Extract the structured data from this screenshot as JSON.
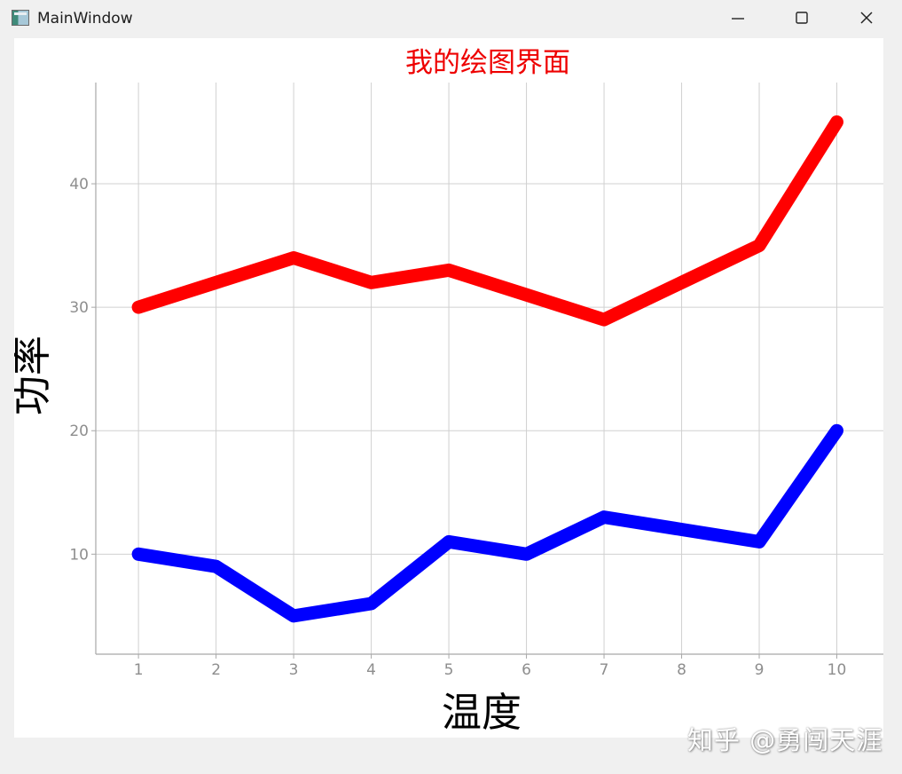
{
  "window": {
    "title": "MainWindow",
    "icon": "app-window-icon",
    "controls": {
      "minimize": "minimize-icon",
      "maximize": "maximize-icon",
      "close": "close-icon"
    }
  },
  "chart_data": {
    "type": "line",
    "title": "我的绘图界面",
    "xlabel": "温度",
    "ylabel": "功率",
    "x": [
      1,
      2,
      3,
      4,
      5,
      6,
      7,
      8,
      9,
      10
    ],
    "x_ticks": [
      1,
      2,
      3,
      4,
      5,
      6,
      7,
      8,
      9,
      10
    ],
    "y_ticks": [
      10,
      20,
      30,
      40
    ],
    "xlim": [
      0.45,
      10.6
    ],
    "ylim": [
      1.9,
      48.2
    ],
    "grid": true,
    "series": [
      {
        "values": [
          30,
          32,
          34,
          32,
          33,
          31,
          29,
          32,
          35,
          45
        ],
        "color": "#ff0000"
      },
      {
        "values": [
          10,
          9,
          5,
          6,
          11,
          10,
          13,
          12,
          11,
          20
        ],
        "color": "#0000ff"
      }
    ],
    "colors": {
      "title": "#ee0000",
      "grid": "#d0d0d0",
      "axis": "#a8a8a8",
      "tick_label": "#8e8e8e"
    }
  },
  "watermark": "知乎 @勇闯天涯"
}
